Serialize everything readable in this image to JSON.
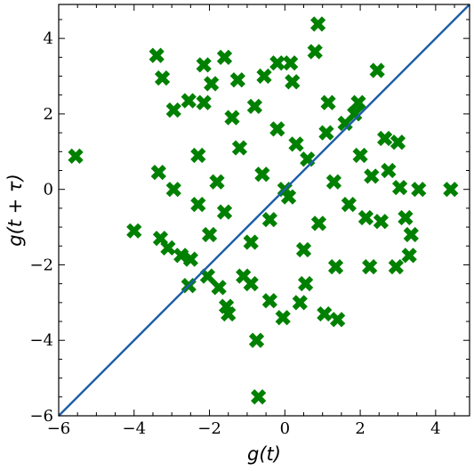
{
  "chart_data": {
    "type": "scatter",
    "title": "",
    "xlabel": "g(t)",
    "ylabel": "g(t + τ)",
    "xlim": [
      -6,
      4.9
    ],
    "ylim": [
      -6,
      4.9
    ],
    "x_ticks": [
      -6,
      -4,
      -2,
      0,
      2,
      4
    ],
    "y_ticks": [
      -6,
      -4,
      -2,
      0,
      2,
      4
    ],
    "x_tick_labels": [
      "−6",
      "−4",
      "−2",
      "0",
      "2",
      "4"
    ],
    "y_tick_labels": [
      "−6",
      "−4",
      "−2",
      "0",
      "2",
      "4"
    ],
    "grid": false,
    "legend": false,
    "marker": "X",
    "marker_color": "#008000",
    "line_color": "#1f5fa8",
    "reference_line": {
      "x": [
        -6,
        4.9
      ],
      "y": [
        -6,
        4.9
      ]
    },
    "points": [
      [
        -5.55,
        0.88
      ],
      [
        -4.0,
        -1.1
      ],
      [
        -3.4,
        3.55
      ],
      [
        -3.25,
        2.95
      ],
      [
        -3.35,
        0.45
      ],
      [
        -3.3,
        -1.3
      ],
      [
        -3.1,
        -1.55
      ],
      [
        -2.95,
        2.1
      ],
      [
        -2.95,
        0.0
      ],
      [
        -2.75,
        -1.75
      ],
      [
        -2.55,
        2.35
      ],
      [
        -2.55,
        -2.55
      ],
      [
        -2.5,
        -1.85
      ],
      [
        -2.3,
        0.9
      ],
      [
        -2.3,
        -0.4
      ],
      [
        -2.15,
        3.3
      ],
      [
        -2.15,
        2.3
      ],
      [
        -2.05,
        -2.3
      ],
      [
        -1.95,
        2.8
      ],
      [
        -1.6,
        3.5
      ],
      [
        -1.75,
        -2.6
      ],
      [
        -1.55,
        -3.1
      ],
      [
        -1.5,
        -3.3
      ],
      [
        -1.25,
        2.9
      ],
      [
        -1.1,
        -2.3
      ],
      [
        -0.9,
        -2.5
      ],
      [
        -0.75,
        -4.0
      ],
      [
        -0.7,
        -5.5
      ],
      [
        -0.55,
        3.0
      ],
      [
        -0.4,
        -2.95
      ],
      [
        -0.2,
        3.35
      ],
      [
        -0.05,
        -3.4
      ],
      [
        0.15,
        3.35
      ],
      [
        0.2,
        2.85
      ],
      [
        0.4,
        -3.0
      ],
      [
        0.55,
        -2.5
      ],
      [
        0.8,
        3.65
      ],
      [
        0.88,
        4.38
      ],
      [
        1.05,
        -3.3
      ],
      [
        1.4,
        -3.45
      ],
      [
        1.15,
        2.3
      ],
      [
        1.35,
        -2.05
      ],
      [
        1.6,
        1.75
      ],
      [
        1.85,
        2.0
      ],
      [
        1.95,
        2.3
      ],
      [
        2.15,
        -0.75
      ],
      [
        2.25,
        -2.05
      ],
      [
        2.3,
        0.35
      ],
      [
        2.45,
        3.15
      ],
      [
        2.55,
        -0.85
      ],
      [
        2.65,
        1.35
      ],
      [
        2.75,
        0.5
      ],
      [
        2.95,
        -2.05
      ],
      [
        3.0,
        1.25
      ],
      [
        3.05,
        0.05
      ],
      [
        3.2,
        -0.75
      ],
      [
        3.3,
        -1.75
      ],
      [
        3.35,
        -1.2
      ],
      [
        3.55,
        -0.0
      ],
      [
        4.4,
        -0.0
      ],
      [
        -1.2,
        1.1
      ],
      [
        -0.6,
        0.4
      ],
      [
        0.1,
        -0.2
      ],
      [
        0.6,
        0.8
      ],
      [
        -0.2,
        1.6
      ],
      [
        0.9,
        -0.9
      ],
      [
        -1.6,
        -0.6
      ],
      [
        1.3,
        0.2
      ],
      [
        -0.9,
        -1.4
      ],
      [
        0.3,
        1.2
      ],
      [
        -1.8,
        0.2
      ],
      [
        1.7,
        -0.4
      ],
      [
        0.5,
        -1.6
      ],
      [
        -0.4,
        -0.8
      ],
      [
        1.1,
        1.5
      ],
      [
        -1.4,
        1.9
      ],
      [
        2.0,
        0.9
      ],
      [
        -2.0,
        -1.2
      ],
      [
        0.0,
        0.0
      ],
      [
        -0.8,
        2.2
      ]
    ]
  }
}
